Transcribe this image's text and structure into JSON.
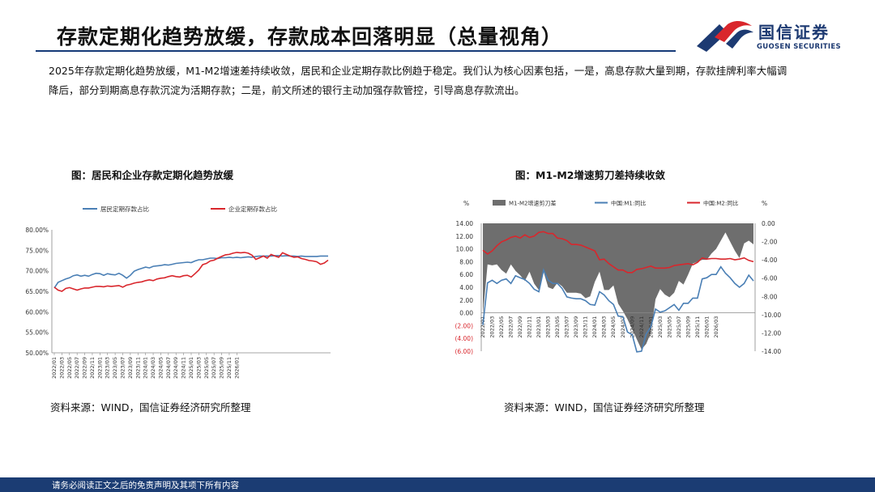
{
  "page": {
    "title": "存款定期化趋势放缓，存款成本回落明显（总量视角）",
    "intro": "2025年存款定期化趋势放缓，M1-M2增速差持续收敛，居民和企业定期存款比例趋于稳定。我们认为核心因素包括，一是，高息存款大量到期，存款挂牌利率大幅调降后，部分到期高息存款沉淀为活期存款；二是，前文所述的银行主动加强存款管控，引导高息存款流出。",
    "footer": "请务必阅读正文之后的免责声明及其项下所有内容"
  },
  "logo": {
    "name": "国信证券",
    "sub": "GUOSEN SECURITIES",
    "colors": [
      "#d9262c",
      "#1d3a72"
    ]
  },
  "left_chart": {
    "heading": "图：居民和企业存款定期化趋势放缓",
    "source": "资料来源：WIND，国信证券经济研究所整理"
  },
  "right_chart": {
    "heading": "图：M1-M2增速剪刀差持续收敛",
    "source": "资料来源：WIND，国信证券经济研究所整理"
  },
  "chart_data": [
    {
      "type": "line",
      "title": "图：居民和企业存款定期化趋势放缓",
      "xlabel": "",
      "ylabel": "",
      "ylim": [
        50,
        80
      ],
      "y_ticks": [
        "50.00%",
        "55.00%",
        "60.00%",
        "65.00%",
        "70.00%",
        "75.00%",
        "80.00%"
      ],
      "x_ticks": [
        "2022/01",
        "2022/03",
        "2022/05",
        "2022/07",
        "2022/09",
        "2022/11",
        "2023/01",
        "2023/03",
        "2023/05",
        "2023/07",
        "2023/09",
        "2023/11",
        "2024/01",
        "2024/03",
        "2024/05",
        "2024/07",
        "2024/09",
        "2024/11",
        "2025/01",
        "2025/03",
        "2025/05",
        "2025/07",
        "2025/09",
        "2025/11",
        "2026/01"
      ],
      "legend_position": "top",
      "grid": false,
      "series": [
        {
          "name": "居民定期存款占比",
          "color": "#4a7fb5",
          "values": [
            65.8,
            67.2,
            67.6,
            68.0,
            68.3,
            68.8,
            69.0,
            68.7,
            68.9,
            68.7,
            69.1,
            69.4,
            69.3,
            68.9,
            69.3,
            69.1,
            69.0,
            69.4,
            68.9,
            68.2,
            68.9,
            69.9,
            70.3,
            70.6,
            70.9,
            70.7,
            71.1,
            71.2,
            71.3,
            71.5,
            71.4,
            71.6,
            71.8,
            71.9,
            72.0,
            72.1,
            72.0,
            72.4,
            72.7,
            72.7,
            72.9,
            73.1,
            73.1,
            73.0,
            73.2,
            73.2,
            73.3,
            73.2,
            73.3,
            73.2,
            73.3,
            73.4,
            73.3,
            73.5,
            73.6,
            73.6,
            73.6,
            73.6,
            73.7,
            73.7,
            73.6,
            73.7,
            73.6,
            73.6,
            73.5,
            73.6,
            73.5,
            73.5,
            73.5,
            73.5,
            73.6,
            73.6,
            73.6
          ]
        },
        {
          "name": "企业定期存款占比",
          "color": "#d9262c",
          "values": [
            66.0,
            65.3,
            65.0,
            65.7,
            65.9,
            65.6,
            65.3,
            65.6,
            65.8,
            65.8,
            66.0,
            66.2,
            66.2,
            66.1,
            66.3,
            66.2,
            66.3,
            66.4,
            66.0,
            66.5,
            66.7,
            67.0,
            67.2,
            67.3,
            67.6,
            67.8,
            67.6,
            68.0,
            68.2,
            68.3,
            68.6,
            68.8,
            68.6,
            68.5,
            68.8,
            68.9,
            68.5,
            69.3,
            70.2,
            71.5,
            71.8,
            72.4,
            72.6,
            73.1,
            73.5,
            73.9,
            74.0,
            74.3,
            74.5,
            74.4,
            74.5,
            74.3,
            73.8,
            72.8,
            73.2,
            73.6,
            73.1,
            74.0,
            73.6,
            73.3,
            74.4,
            74.0,
            73.6,
            73.3,
            73.4,
            73.0,
            72.8,
            72.5,
            72.4,
            72.2,
            71.6,
            71.9,
            72.6
          ]
        }
      ]
    },
    {
      "type": "bar+line",
      "title": "图：M1-M2增速剪刀差持续收敛",
      "xlabel": "",
      "y_unit_left": "%",
      "y_unit_right": "%",
      "ylim_left": [
        -6,
        14
      ],
      "ylim_right": [
        -14,
        0
      ],
      "y_ticks_left": [
        "(6.00)",
        "(4.00)",
        "(2.00)",
        "0.00",
        "2.00",
        "4.00",
        "6.00",
        "8.00",
        "10.00",
        "12.00",
        "14.00"
      ],
      "y_ticks_right": [
        "-14.00",
        "-12.00",
        "-10.00",
        "-8.00",
        "-6.00",
        "-4.00",
        "-2.00",
        "0.00"
      ],
      "x_ticks": [
        "2022/01",
        "2022/03",
        "2022/05",
        "2022/07",
        "2022/09",
        "2022/11",
        "2023/01",
        "2023/03",
        "2023/05",
        "2023/07",
        "2023/09",
        "2023/11",
        "2024/01",
        "2024/03",
        "2024/05",
        "2024/07",
        "2024/09",
        "2024/11",
        "2025/01",
        "2025/03",
        "2025/05",
        "2025/07",
        "2025/09",
        "2025/11",
        "2026/01",
        "2026/03"
      ],
      "legend_position": "top",
      "grid": false,
      "series": [
        {
          "name": "M1-M2增速剪刀差",
          "axis": "right",
          "color": "#6e6e6e",
          "values": [
            -10.0,
            -4.5,
            -4.6,
            -4.5,
            -5.1,
            -5.5,
            -4.5,
            -5.2,
            -5.7,
            -6.3,
            -5.3,
            -6.6,
            -7.3,
            -5.3,
            -7.0,
            -7.2,
            -6.5,
            -6.9,
            -7.6,
            -7.6,
            -7.6,
            -7.7,
            -8.2,
            -8.0,
            -6.4,
            -5.3,
            -7.3,
            -7.3,
            -6.8,
            -8.8,
            -9.6,
            -10.5,
            -11.6,
            -12.7,
            -13.8,
            -13.2,
            -12.0,
            -8.3,
            -7.2,
            -7.8,
            -8.1,
            -7.6,
            -6.3,
            -6.7,
            -5.6,
            -4.4,
            -4.2,
            -4.0,
            -4.0,
            -3.3,
            -2.8,
            -1.9,
            -1.0,
            -2.0,
            -3.0,
            -3.8,
            -2.2,
            -1.9,
            -2.3
          ]
        },
        {
          "name": "中国:M1:同比",
          "axis": "left",
          "color": "#4a7fb5",
          "values": [
            -1.9,
            4.7,
            5.1,
            4.6,
            5.1,
            5.3,
            4.6,
            5.8,
            5.5,
            5.2,
            4.6,
            3.7,
            3.3,
            6.7,
            5.1,
            4.6,
            4.6,
            3.8,
            2.5,
            2.3,
            2.2,
            2.2,
            1.9,
            1.3,
            1.2,
            3.3,
            2.8,
            1.9,
            1.3,
            -0.5,
            -0.6,
            -3.0,
            -3.4,
            -6.1,
            -6.0,
            -3.3,
            -2.2,
            0.6,
            0.1,
            0.3,
            0.8,
            1.3,
            0.4,
            1.5,
            1.5,
            2.3,
            2.3,
            5.3,
            5.5,
            6.0,
            6.0,
            7.2,
            6.2,
            5.5,
            4.6,
            4.0,
            4.6,
            5.9,
            5.0
          ]
        },
        {
          "name": "中国:M2:同比",
          "axis": "left",
          "color": "#d9262c",
          "values": [
            9.8,
            9.2,
            9.7,
            10.5,
            11.1,
            11.4,
            11.8,
            12.0,
            11.7,
            12.2,
            11.8,
            12.0,
            12.6,
            12.7,
            12.4,
            12.4,
            11.7,
            11.6,
            11.3,
            10.7,
            10.7,
            10.6,
            10.3,
            10.0,
            9.7,
            8.3,
            8.4,
            7.7,
            7.2,
            6.7,
            6.7,
            6.3,
            6.3,
            6.8,
            6.9,
            7.1,
            7.3,
            7.0,
            7.0,
            7.0,
            7.1,
            7.4,
            7.5,
            7.6,
            7.7,
            7.5,
            7.9,
            8.6,
            8.4,
            8.5,
            8.5,
            8.4,
            8.4,
            8.5,
            8.3,
            8.4,
            8.6,
            8.2,
            8.0
          ]
        }
      ]
    }
  ]
}
